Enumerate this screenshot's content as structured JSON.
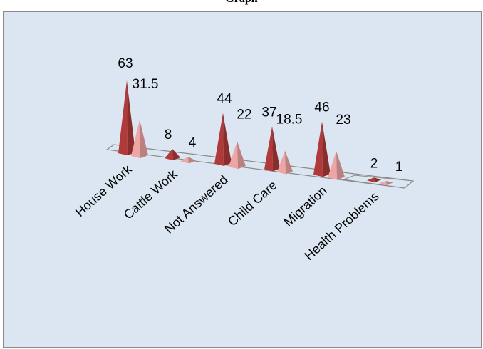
{
  "chart_title": "Graph",
  "colors": {
    "background": "#dce6f2",
    "series_dark": "#b03a3a",
    "series_light": "#f0a5a5",
    "floor_edge": "#8a8a8a"
  },
  "chart_data": {
    "type": "bar",
    "style": "3d-cone",
    "title": "Graph",
    "categories": [
      "House Work",
      "Cattle Work",
      "Not Answered",
      "Child Care",
      "Migration",
      "Health Problems"
    ],
    "series": [
      {
        "values": [
          63,
          8,
          44,
          37,
          46,
          2
        ],
        "labels": [
          "63",
          "8",
          "44",
          "37",
          "46",
          "2"
        ]
      },
      {
        "values": [
          31.5,
          4,
          22,
          18.5,
          23,
          1
        ],
        "labels": [
          "31.5",
          "4",
          "22",
          "18.5",
          "23",
          "1"
        ]
      }
    ],
    "grid": false,
    "legend": "none"
  }
}
